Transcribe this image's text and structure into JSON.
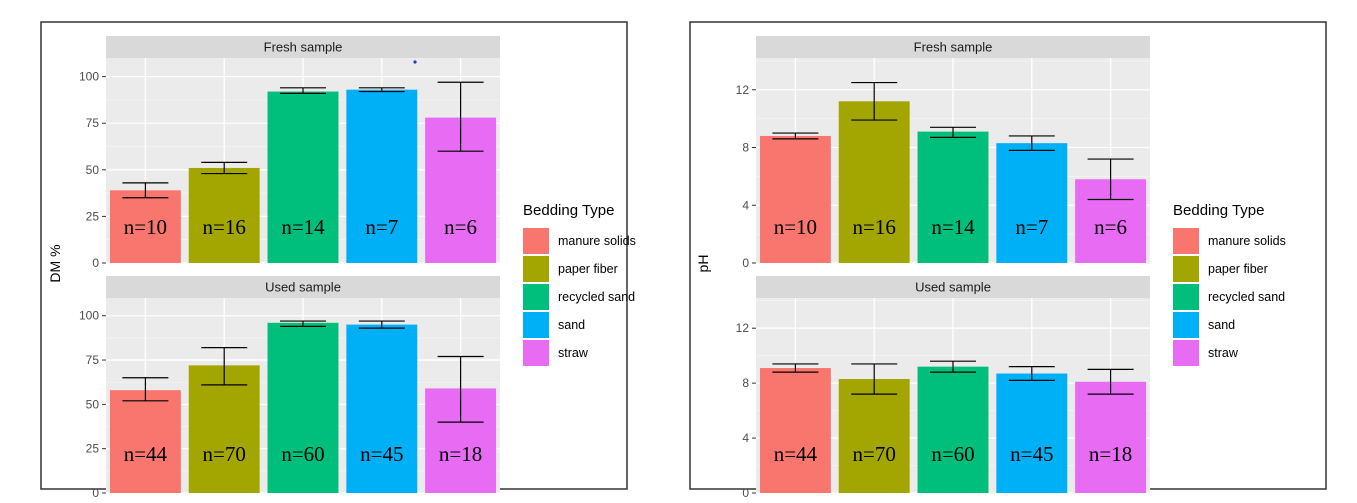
{
  "legend": {
    "title": "Bedding Type",
    "items": [
      {
        "label": "manure solids",
        "color": "#F8766D"
      },
      {
        "label": "paper fiber",
        "color": "#A3A500"
      },
      {
        "label": "recycled sand",
        "color": "#00BF7D"
      },
      {
        "label": "sand",
        "color": "#00B0F6"
      },
      {
        "label": "straw",
        "color": "#E76BF3"
      }
    ]
  },
  "chart_data": [
    {
      "type": "bar",
      "ylabel": "DM %",
      "categories": [
        "manure solids",
        "paper fiber",
        "recycled sand",
        "sand",
        "straw"
      ],
      "ylim": [
        0,
        110
      ],
      "yticks": [
        "0",
        "25",
        "50",
        "75",
        "100"
      ],
      "ytick_values": [
        0,
        25,
        50,
        75,
        100
      ],
      "panels": [
        {
          "strip": "Fresh sample",
          "values": [
            39,
            51,
            92,
            93,
            78
          ],
          "error_low": [
            35,
            48,
            91,
            92,
            60
          ],
          "error_high": [
            43,
            54,
            94,
            94,
            97
          ],
          "n_labels": [
            "n=10",
            "n=16",
            "n=14",
            "n=7",
            "n=6"
          ]
        },
        {
          "strip": "Used sample",
          "values": [
            58,
            72,
            96,
            95,
            59
          ],
          "error_low": [
            52,
            61,
            94,
            93,
            40
          ],
          "error_high": [
            65,
            82,
            97,
            97,
            77
          ],
          "n_labels": [
            "n=44",
            "n=70",
            "n=60",
            "n=45",
            "n=18"
          ]
        }
      ]
    },
    {
      "type": "bar",
      "ylabel": "pH",
      "categories": [
        "manure solids",
        "paper fiber",
        "recycled sand",
        "sand",
        "straw"
      ],
      "ylim": [
        0,
        14.2
      ],
      "yticks": [
        "0",
        "4",
        "8",
        "12"
      ],
      "ytick_values": [
        0,
        4,
        8,
        12
      ],
      "panels": [
        {
          "strip": "Fresh sample",
          "values": [
            8.8,
            11.2,
            9.1,
            8.3,
            5.8
          ],
          "error_low": [
            8.6,
            9.9,
            8.7,
            7.8,
            4.4
          ],
          "error_high": [
            9.0,
            12.5,
            9.4,
            8.8,
            7.2
          ],
          "n_labels": [
            "n=10",
            "n=16",
            "n=14",
            "n=7",
            "n=6"
          ]
        },
        {
          "strip": "Used sample",
          "values": [
            9.1,
            8.3,
            9.2,
            8.7,
            8.1
          ],
          "error_low": [
            8.8,
            7.2,
            8.8,
            8.2,
            7.2
          ],
          "error_high": [
            9.4,
            9.4,
            9.6,
            9.2,
            9.0
          ],
          "n_labels": [
            "n=44",
            "n=70",
            "n=60",
            "n=45",
            "n=18"
          ]
        }
      ]
    }
  ]
}
